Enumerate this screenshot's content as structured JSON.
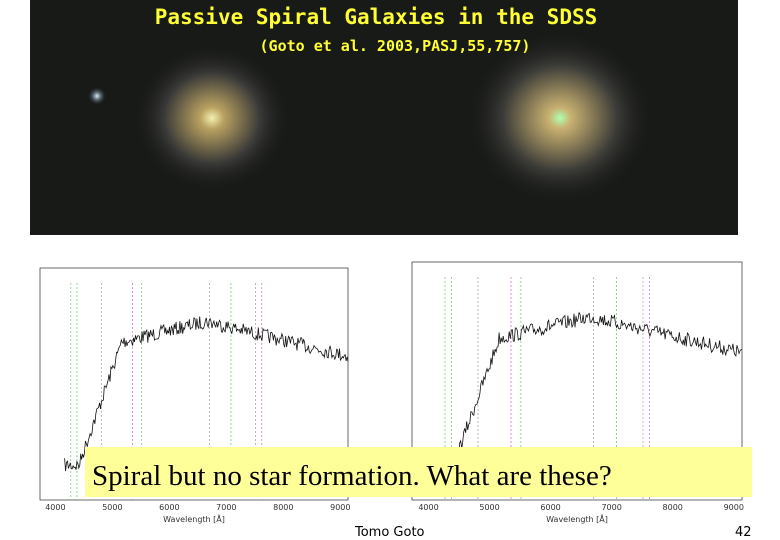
{
  "header": {
    "title": "Passive Spiral Galaxies in the SDSS",
    "subtitle": "(Goto et al. 2003,PASJ,55,757)"
  },
  "spectra": {
    "left": {
      "x_ticks": [
        "4000",
        "5000",
        "6000",
        "7000",
        "8000",
        "9000"
      ],
      "x_label": "Wavelength [Å]"
    },
    "right": {
      "x_ticks": [
        "4000",
        "5000",
        "6000",
        "7000",
        "8000",
        "9000"
      ],
      "x_label": "Wavelength [Å]"
    }
  },
  "caption": "Spiral but no star formation.  What are these?",
  "footer": {
    "author": "Tomo Goto",
    "page": "42"
  }
}
